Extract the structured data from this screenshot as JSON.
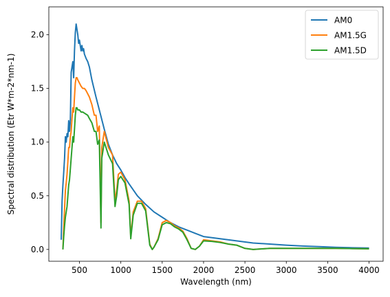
{
  "chart_data": {
    "type": "line",
    "title": "",
    "xlabel": "Wavelength (nm)",
    "ylabel": "Spectral distribution (Etr W*m-2*nm-1)",
    "xlim": [
      130,
      4170
    ],
    "ylim": [
      -0.11,
      2.26
    ],
    "xticks": [
      500,
      1000,
      1500,
      2000,
      2500,
      3000,
      3500,
      4000
    ],
    "yticks": [
      0.0,
      0.5,
      1.0,
      1.5,
      2.0
    ],
    "xtick_labels": [
      "500",
      "1000",
      "1500",
      "2000",
      "2500",
      "3000",
      "3500",
      "4000"
    ],
    "ytick_labels": [
      "0.0",
      "0.5",
      "1.0",
      "1.5",
      "2.0"
    ],
    "grid": false,
    "legend_position": "top-right",
    "series": [
      {
        "name": "AM0",
        "color": "#1f77b4",
        "x": [
          280,
          290,
          300,
          310,
          320,
          330,
          340,
          350,
          360,
          370,
          380,
          390,
          400,
          410,
          420,
          430,
          440,
          450,
          460,
          470,
          480,
          490,
          500,
          510,
          520,
          530,
          540,
          550,
          560,
          580,
          600,
          620,
          650,
          700,
          750,
          800,
          850,
          900,
          950,
          1000,
          1050,
          1100,
          1200,
          1300,
          1400,
          1500,
          1600,
          1700,
          1800,
          1900,
          2000,
          2200,
          2400,
          2600,
          2800,
          3000,
          3200,
          3400,
          3600,
          3800,
          4000
        ],
        "y": [
          0.09,
          0.45,
          0.6,
          0.72,
          0.85,
          1.05,
          1.0,
          1.08,
          1.05,
          1.2,
          1.1,
          1.2,
          1.65,
          1.7,
          1.75,
          1.6,
          1.85,
          2.02,
          2.1,
          2.05,
          2.0,
          1.92,
          1.95,
          1.9,
          1.85,
          1.9,
          1.85,
          1.87,
          1.82,
          1.78,
          1.75,
          1.7,
          1.58,
          1.42,
          1.27,
          1.12,
          0.98,
          0.88,
          0.8,
          0.74,
          0.67,
          0.61,
          0.5,
          0.42,
          0.35,
          0.3,
          0.25,
          0.21,
          0.18,
          0.15,
          0.12,
          0.1,
          0.08,
          0.06,
          0.05,
          0.04,
          0.032,
          0.026,
          0.02,
          0.016,
          0.013
        ]
      },
      {
        "name": "AM1.5G",
        "color": "#ff7f0e",
        "x": [
          300,
          310,
          320,
          330,
          340,
          350,
          360,
          370,
          380,
          390,
          400,
          410,
          420,
          430,
          440,
          450,
          460,
          470,
          480,
          500,
          520,
          540,
          560,
          580,
          600,
          620,
          650,
          680,
          700,
          720,
          740,
          760,
          770,
          800,
          850,
          900,
          930,
          950,
          970,
          1000,
          1050,
          1100,
          1120,
          1150,
          1200,
          1250,
          1300,
          1350,
          1380,
          1400,
          1450,
          1500,
          1550,
          1600,
          1650,
          1700,
          1750,
          1800,
          1850,
          1900,
          1950,
          2000,
          2100,
          2200,
          2300,
          2400,
          2500,
          2600,
          2700,
          2800,
          3000,
          3200,
          3400,
          3600,
          3800,
          4000
        ],
        "y": [
          0.0,
          0.2,
          0.38,
          0.55,
          0.62,
          0.7,
          0.82,
          0.95,
          0.95,
          1.05,
          1.1,
          1.22,
          1.32,
          1.28,
          1.42,
          1.55,
          1.6,
          1.6,
          1.58,
          1.55,
          1.52,
          1.5,
          1.5,
          1.48,
          1.45,
          1.42,
          1.35,
          1.25,
          1.25,
          1.1,
          1.15,
          0.25,
          0.95,
          1.1,
          0.95,
          0.88,
          0.45,
          0.55,
          0.7,
          0.72,
          0.65,
          0.45,
          0.12,
          0.35,
          0.45,
          0.45,
          0.38,
          0.05,
          0.0,
          0.02,
          0.1,
          0.25,
          0.27,
          0.25,
          0.22,
          0.2,
          0.17,
          0.1,
          0.01,
          0.0,
          0.03,
          0.09,
          0.08,
          0.07,
          0.05,
          0.04,
          0.01,
          0.0,
          0.005,
          0.01,
          0.01,
          0.01,
          0.01,
          0.01,
          0.008,
          0.006
        ]
      },
      {
        "name": "AM1.5D",
        "color": "#2ca02c",
        "x": [
          300,
          310,
          320,
          330,
          340,
          350,
          360,
          370,
          380,
          390,
          400,
          410,
          420,
          430,
          440,
          450,
          460,
          470,
          480,
          500,
          520,
          540,
          560,
          580,
          600,
          620,
          650,
          680,
          700,
          720,
          740,
          760,
          770,
          800,
          850,
          900,
          930,
          950,
          970,
          1000,
          1050,
          1100,
          1120,
          1150,
          1200,
          1250,
          1300,
          1350,
          1380,
          1400,
          1450,
          1500,
          1550,
          1600,
          1650,
          1700,
          1750,
          1800,
          1850,
          1900,
          1950,
          2000,
          2100,
          2200,
          2300,
          2400,
          2500,
          2600,
          2700,
          2800,
          3000,
          3200,
          3400,
          3600,
          3800,
          4000
        ],
        "y": [
          0.0,
          0.12,
          0.22,
          0.3,
          0.35,
          0.4,
          0.5,
          0.6,
          0.65,
          0.75,
          0.85,
          0.95,
          1.05,
          1.0,
          1.12,
          1.25,
          1.32,
          1.32,
          1.3,
          1.3,
          1.28,
          1.28,
          1.27,
          1.26,
          1.25,
          1.22,
          1.18,
          1.1,
          1.1,
          0.98,
          1.02,
          0.2,
          0.85,
          1.0,
          0.88,
          0.8,
          0.4,
          0.5,
          0.65,
          0.68,
          0.62,
          0.42,
          0.1,
          0.32,
          0.43,
          0.43,
          0.36,
          0.04,
          0.0,
          0.02,
          0.09,
          0.23,
          0.25,
          0.24,
          0.21,
          0.19,
          0.16,
          0.09,
          0.01,
          0.0,
          0.03,
          0.08,
          0.075,
          0.065,
          0.05,
          0.04,
          0.01,
          0.0,
          0.005,
          0.01,
          0.01,
          0.01,
          0.01,
          0.01,
          0.008,
          0.006
        ]
      }
    ]
  }
}
